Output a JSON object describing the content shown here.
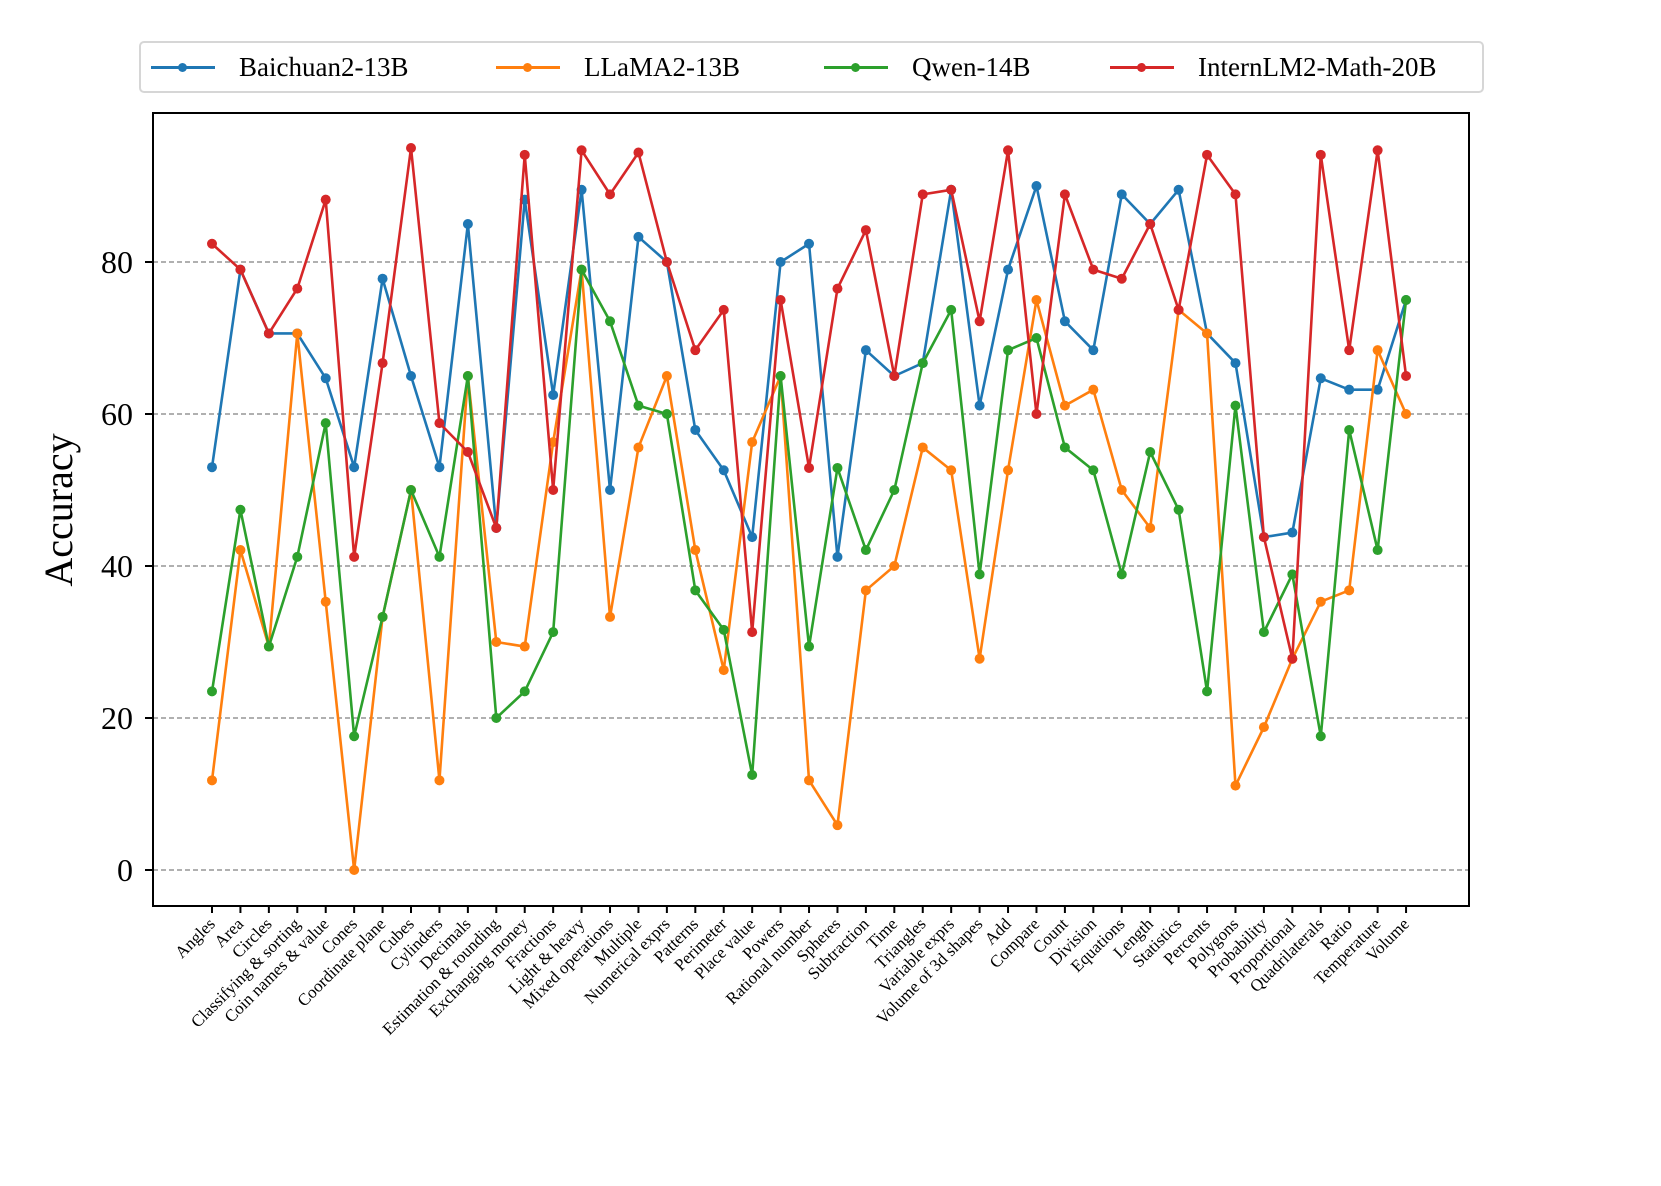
{
  "chart_data": {
    "type": "line",
    "title": "",
    "xlabel": "",
    "ylabel": "Accuracy",
    "ylim": [
      -5,
      100
    ],
    "yticks": [
      0,
      20,
      40,
      60,
      80
    ],
    "grid": "horizontal dashed",
    "legend_position": "top-center",
    "categories": [
      "Angles",
      "Area",
      "Circles",
      "Classifying & sorting",
      "Coin names & value",
      "Cones",
      "Coordinate plane",
      "Cubes",
      "Cylinders",
      "Decimals",
      "Estimation & rounding",
      "Exchanging money",
      "Fractions",
      "Light & heavy",
      "Mixed operations",
      "Multiple",
      "Numerical exprs",
      "Patterns",
      "Perimeter",
      "Place value",
      "Powers",
      "Rational number",
      "Spheres",
      "Subtraction",
      "Time",
      "Triangles",
      "Variable exprs",
      "Volume of 3d shapes",
      "Add",
      "Compare",
      "Count",
      "Division",
      "Equations",
      "Length",
      "Statistics",
      "Percents",
      "Polygons",
      "Probability",
      "Proportional",
      "Quadrilaterals",
      "Ratio",
      "Temperature",
      "Volume"
    ],
    "series": [
      {
        "name": "Baichuan2-13B",
        "color": "#1f77b4",
        "values": [
          53,
          79,
          70.6,
          70.6,
          64.7,
          53,
          77.8,
          65,
          53,
          85,
          45,
          88.2,
          62.5,
          89.5,
          50,
          83.3,
          80,
          57.9,
          52.6,
          43.8,
          80,
          82.4,
          41.2,
          68.4,
          65,
          66.7,
          89.5,
          61.1,
          79,
          90,
          72.2,
          68.4,
          88.9,
          85,
          89.5,
          70.6,
          66.7,
          43.8,
          44.4,
          64.7,
          63.2,
          63.2,
          75
        ]
      },
      {
        "name": "LLaMA2-13B",
        "color": "#ff7f0e",
        "values": [
          11.8,
          42.1,
          29.4,
          70.6,
          35.3,
          0,
          33.3,
          50,
          11.8,
          65,
          30,
          29.4,
          56.3,
          79,
          33.3,
          55.6,
          65,
          42.1,
          26.3,
          56.3,
          65,
          11.8,
          5.9,
          36.8,
          40,
          55.6,
          52.6,
          27.8,
          52.6,
          75,
          61.1,
          63.2,
          50,
          45,
          73.7,
          70.6,
          11.1,
          18.8,
          27.8,
          35.3,
          36.8,
          68.4,
          60
        ]
      },
      {
        "name": "Qwen-14B",
        "color": "#2ca02c",
        "values": [
          23.5,
          47.4,
          29.4,
          41.2,
          58.8,
          17.6,
          33.3,
          50,
          41.2,
          65,
          20,
          23.5,
          31.3,
          79,
          72.2,
          61.1,
          60,
          36.8,
          31.6,
          12.5,
          65,
          29.4,
          52.9,
          42.1,
          50,
          66.7,
          73.7,
          38.9,
          68.4,
          70,
          55.6,
          52.6,
          38.9,
          55,
          47.4,
          23.5,
          61.1,
          31.3,
          38.9,
          17.6,
          57.9,
          42.1,
          75
        ]
      },
      {
        "name": "InternLM2-Math-20B",
        "color": "#d62728",
        "values": [
          82.4,
          79,
          70.6,
          76.5,
          88.2,
          41.2,
          66.7,
          95,
          58.8,
          55,
          45,
          94.1,
          50,
          94.7,
          88.9,
          94.4,
          80,
          68.4,
          73.7,
          31.3,
          75,
          52.9,
          76.5,
          84.2,
          65,
          88.9,
          89.5,
          72.2,
          94.7,
          60,
          88.9,
          79,
          77.8,
          85,
          73.7,
          94.1,
          88.9,
          43.8,
          27.8,
          94.1,
          68.4,
          94.7,
          65
        ]
      }
    ]
  }
}
